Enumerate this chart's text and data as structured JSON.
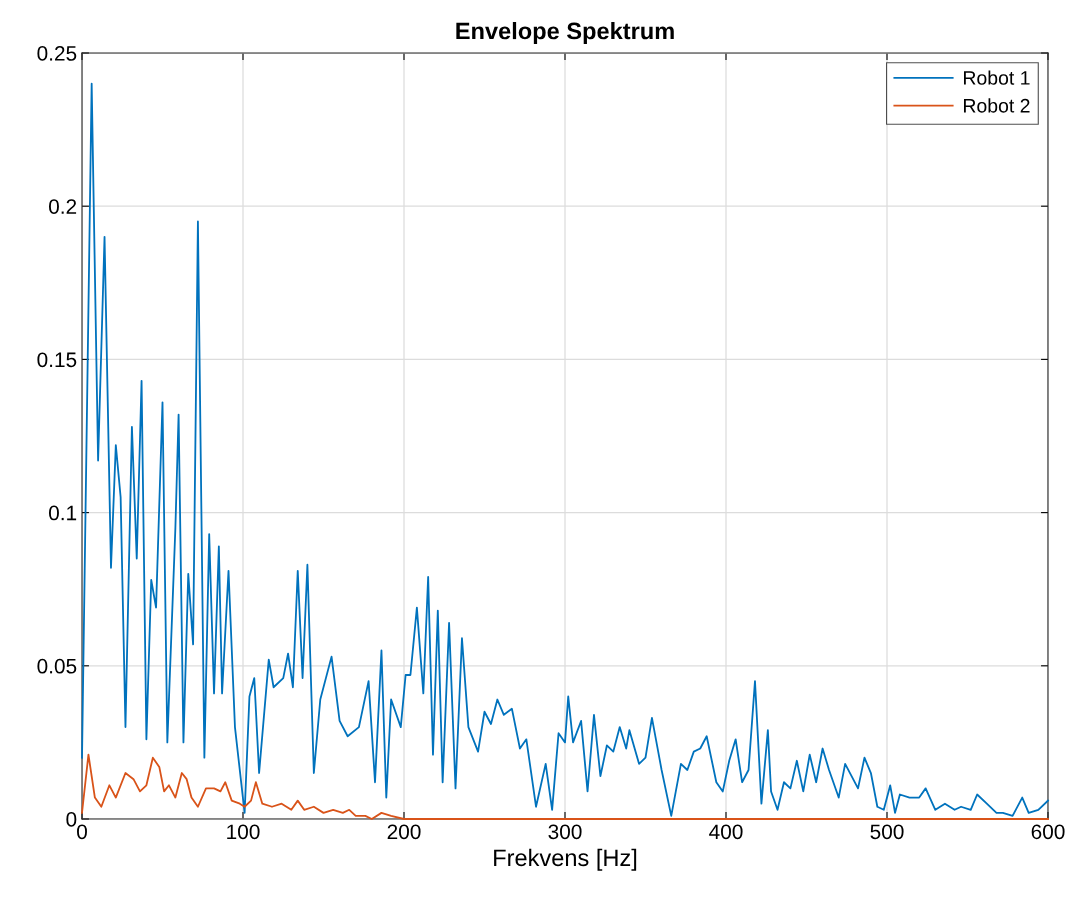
{
  "chart_data": {
    "type": "line",
    "title": "Envelope Spektrum",
    "xlabel": "Frekvens [Hz]",
    "xlim": [
      0,
      600
    ],
    "xticks": [
      0,
      100,
      200,
      300,
      400,
      500,
      600
    ],
    "ylim": [
      0,
      0.25
    ],
    "yticks": [
      0,
      0.05,
      0.1,
      0.15,
      0.2,
      0.25
    ],
    "grid": true,
    "legend": "top right",
    "series": [
      {
        "name": "Robot 1",
        "color": "#0072bd",
        "x": [
          0,
          6,
          10,
          14,
          18,
          21,
          24,
          27,
          31,
          34,
          37,
          40,
          43,
          46,
          50,
          53,
          58,
          60,
          63,
          66,
          69,
          72,
          76,
          79,
          82,
          85,
          87,
          91,
          95,
          101,
          104,
          107,
          110,
          116,
          119,
          125,
          128,
          131,
          134,
          137,
          140,
          144,
          148,
          155,
          160,
          165,
          172,
          178,
          182,
          186,
          189,
          192,
          198,
          201,
          204,
          208,
          212,
          215,
          218,
          221,
          224,
          228,
          232,
          236,
          240,
          246,
          250,
          254,
          258,
          262,
          267,
          272,
          276,
          282,
          288,
          292,
          296,
          300,
          302,
          305,
          310,
          314,
          318,
          322,
          326,
          330,
          334,
          338,
          340,
          346,
          350,
          354,
          360,
          366,
          372,
          376,
          380,
          384,
          388,
          394,
          398,
          402,
          406,
          410,
          414,
          418,
          422,
          426,
          428,
          432,
          436,
          440,
          444,
          448,
          452,
          456,
          460,
          464,
          470,
          474,
          478,
          482,
          486,
          490,
          494,
          498,
          502,
          505,
          508,
          514,
          520,
          524,
          530,
          536,
          542,
          546,
          552,
          556,
          562,
          568,
          572,
          578,
          584,
          588,
          594,
          600
        ],
        "values": [
          0.02,
          0.24,
          0.117,
          0.19,
          0.082,
          0.122,
          0.105,
          0.03,
          0.128,
          0.085,
          0.143,
          0.026,
          0.078,
          0.069,
          0.136,
          0.025,
          0.095,
          0.132,
          0.025,
          0.08,
          0.057,
          0.195,
          0.02,
          0.093,
          0.041,
          0.089,
          0.041,
          0.081,
          0.03,
          0.002,
          0.04,
          0.046,
          0.015,
          0.052,
          0.043,
          0.046,
          0.054,
          0.043,
          0.081,
          0.046,
          0.083,
          0.015,
          0.039,
          0.053,
          0.032,
          0.027,
          0.03,
          0.045,
          0.012,
          0.055,
          0.007,
          0.039,
          0.03,
          0.047,
          0.047,
          0.069,
          0.041,
          0.079,
          0.021,
          0.068,
          0.012,
          0.064,
          0.01,
          0.059,
          0.03,
          0.022,
          0.035,
          0.031,
          0.039,
          0.034,
          0.036,
          0.023,
          0.026,
          0.004,
          0.018,
          0.003,
          0.028,
          0.025,
          0.04,
          0.025,
          0.032,
          0.009,
          0.034,
          0.014,
          0.024,
          0.022,
          0.03,
          0.023,
          0.029,
          0.018,
          0.02,
          0.033,
          0.016,
          0.001,
          0.018,
          0.016,
          0.022,
          0.023,
          0.027,
          0.012,
          0.009,
          0.019,
          0.026,
          0.012,
          0.016,
          0.045,
          0.005,
          0.029,
          0.009,
          0.003,
          0.012,
          0.01,
          0.019,
          0.009,
          0.021,
          0.012,
          0.023,
          0.016,
          0.007,
          0.018,
          0.014,
          0.01,
          0.02,
          0.015,
          0.004,
          0.003,
          0.011,
          0.002,
          0.008,
          0.007,
          0.007,
          0.01,
          0.003,
          0.005,
          0.003,
          0.004,
          0.003,
          0.008,
          0.005,
          0.002,
          0.002,
          0.001,
          0.007,
          0.002,
          0.003,
          0.006
        ]
      },
      {
        "name": "Robot 2",
        "color": "#d95319",
        "x": [
          0,
          4,
          8,
          12,
          17,
          21,
          27,
          32,
          36,
          40,
          44,
          48,
          51,
          54,
          58,
          62,
          65,
          68,
          72,
          77,
          82,
          86,
          89,
          93,
          98,
          101,
          105,
          108,
          112,
          118,
          124,
          130,
          134,
          138,
          144,
          150,
          156,
          162,
          166,
          170,
          176,
          180,
          186,
          192,
          200,
          250,
          300,
          400,
          500,
          600
        ],
        "values": [
          0.002,
          0.021,
          0.007,
          0.004,
          0.011,
          0.007,
          0.015,
          0.013,
          0.009,
          0.011,
          0.02,
          0.017,
          0.009,
          0.011,
          0.007,
          0.015,
          0.013,
          0.007,
          0.004,
          0.01,
          0.01,
          0.009,
          0.012,
          0.006,
          0.005,
          0.004,
          0.006,
          0.012,
          0.005,
          0.004,
          0.005,
          0.003,
          0.006,
          0.003,
          0.004,
          0.002,
          0.003,
          0.002,
          0.003,
          0.001,
          0.001,
          0.0,
          0.002,
          0.001,
          0.0,
          0.0,
          0.0,
          0.0,
          0.0,
          0.0
        ]
      }
    ]
  }
}
